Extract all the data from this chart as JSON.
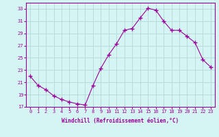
{
  "x": [
    0,
    1,
    2,
    3,
    4,
    5,
    6,
    7,
    8,
    9,
    10,
    11,
    12,
    13,
    14,
    15,
    16,
    17,
    18,
    19,
    20,
    21,
    22,
    23
  ],
  "y": [
    22.0,
    20.5,
    19.8,
    18.8,
    18.2,
    17.8,
    17.5,
    17.3,
    20.5,
    23.3,
    25.5,
    27.3,
    29.5,
    29.8,
    31.5,
    33.1,
    32.8,
    31.0,
    29.5,
    29.5,
    28.5,
    27.5,
    24.7,
    23.5
  ],
  "line_color": "#990099",
  "marker": "+",
  "marker_size": 4,
  "bg_color": "#d5f5f5",
  "grid_color": "#b0d8d8",
  "xlabel": "Windchill (Refroidissement éolien,°C)",
  "xlabel_color": "#990099",
  "tick_color": "#990099",
  "ylim": [
    17,
    34
  ],
  "xlim": [
    -0.5,
    23.5
  ],
  "yticks": [
    17,
    19,
    21,
    23,
    25,
    27,
    29,
    31,
    33
  ],
  "xticks": [
    0,
    1,
    2,
    3,
    4,
    5,
    6,
    7,
    8,
    9,
    10,
    11,
    12,
    13,
    14,
    15,
    16,
    17,
    18,
    19,
    20,
    21,
    22,
    23
  ]
}
